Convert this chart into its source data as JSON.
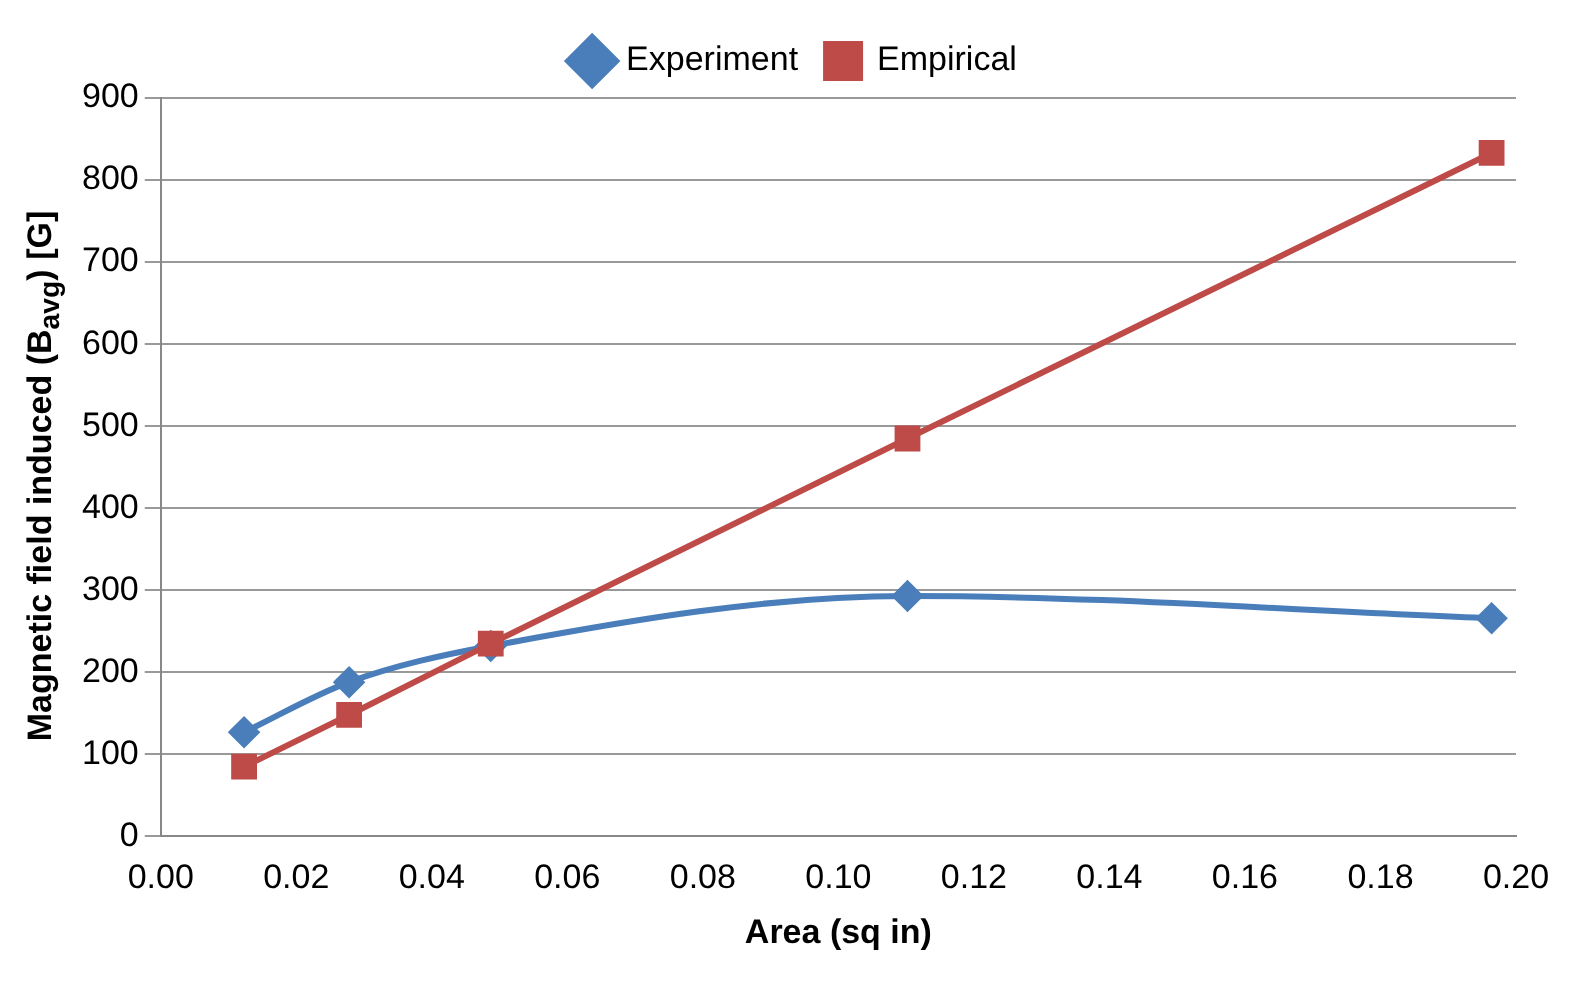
{
  "chart_data": {
    "type": "line",
    "xlabel": "Area (sq in)",
    "ylabel": "Magnetic field induced (B$_{avg}$) [G]",
    "series": [
      {
        "name": "Experiment",
        "color": "#4a7ebb",
        "marker": "diamond",
        "x": [
          0.0123,
          0.0278,
          0.0487,
          0.1102,
          0.1964
        ],
        "values": [
          127,
          188,
          232,
          293,
          266
        ]
      },
      {
        "name": "Empirical",
        "color": "#be4b48",
        "marker": "square",
        "x": [
          0.0123,
          0.0278,
          0.0487,
          0.1102,
          0.1964
        ],
        "values": [
          85,
          148,
          235,
          485,
          833
        ]
      }
    ],
    "xlim": [
      0,
      0.2
    ],
    "xticks": [
      {
        "value": 0,
        "label": "0.00"
      },
      {
        "value": 0.02,
        "label": "0.02"
      },
      {
        "value": 0.04,
        "label": "0.04"
      },
      {
        "value": 0.06,
        "label": "0.06"
      },
      {
        "value": 0.08,
        "label": "0.08"
      },
      {
        "value": 0.1,
        "label": "0.10"
      },
      {
        "value": 0.12,
        "label": "0.12"
      },
      {
        "value": 0.14,
        "label": "0.14"
      },
      {
        "value": 0.16,
        "label": "0.16"
      },
      {
        "value": 0.18,
        "label": "0.18"
      },
      {
        "value": 0.2,
        "label": "0.20"
      }
    ],
    "ylim": [
      0,
      900
    ],
    "yticks": [
      0,
      100,
      200,
      300,
      400,
      500,
      600,
      700,
      800,
      900
    ],
    "grid": "y",
    "legend": "top",
    "line_style": "solid"
  }
}
